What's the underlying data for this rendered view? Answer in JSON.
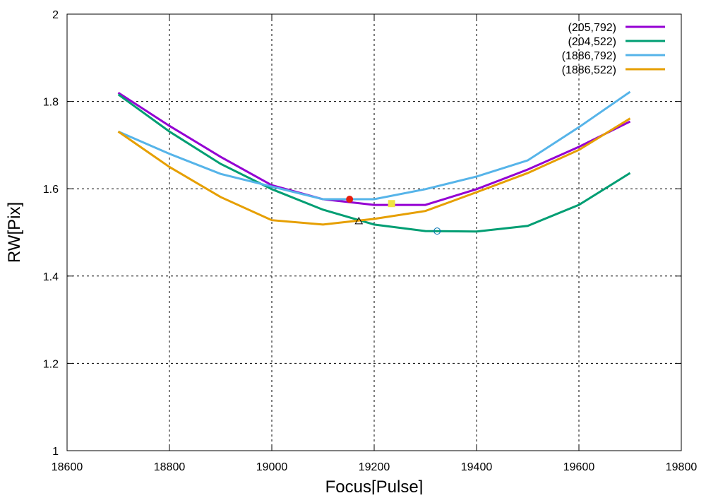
{
  "chart_data": {
    "type": "line",
    "title": "",
    "xlabel": "Focus[Pulse]",
    "ylabel": "RW[Pix]",
    "xlim": [
      18600,
      19800
    ],
    "ylim": [
      1,
      2
    ],
    "xticks": [
      18600,
      18800,
      19000,
      19200,
      19400,
      19600,
      19800
    ],
    "yticks": [
      1,
      1.2,
      1.4,
      1.6,
      1.8,
      2
    ],
    "ytick_labels": [
      "1",
      "1.2",
      "1.4",
      "1.6",
      "1.8",
      "2"
    ],
    "grid": true,
    "legend_position": "top-right",
    "x": [
      18700,
      18800,
      18900,
      19000,
      19100,
      19200,
      19300,
      19400,
      19500,
      19600,
      19700
    ],
    "series": [
      {
        "name": "(205,792)",
        "color": "#9400d3",
        "values": [
          1.82,
          1.744,
          1.673,
          1.608,
          1.576,
          1.563,
          1.563,
          1.599,
          1.644,
          1.696,
          1.754
        ]
      },
      {
        "name": "(204,522)",
        "color": "#009e73",
        "values": [
          1.816,
          1.731,
          1.657,
          1.599,
          1.552,
          1.518,
          1.503,
          1.502,
          1.515,
          1.563,
          1.636
        ]
      },
      {
        "name": "(1886,792)",
        "color": "#56b4e9",
        "values": [
          1.731,
          1.68,
          1.634,
          1.605,
          1.576,
          1.576,
          1.599,
          1.628,
          1.665,
          1.741,
          1.822
        ]
      },
      {
        "name": "(1886,522)",
        "color": "#e69f00",
        "values": [
          1.731,
          1.65,
          1.581,
          1.528,
          1.518,
          1.531,
          1.549,
          1.592,
          1.636,
          1.689,
          1.761
        ]
      }
    ],
    "markers": [
      {
        "shape": "filled-circle",
        "color": "#e51e10",
        "x": 19152,
        "y": 1.576
      },
      {
        "shape": "filled-square",
        "color": "#f0e442",
        "x": 19234,
        "y": 1.566
      },
      {
        "shape": "open-triangle",
        "color": "#000000",
        "x": 19170,
        "y": 1.526
      },
      {
        "shape": "open-circle",
        "color": "#0072b2",
        "x": 19323,
        "y": 1.503
      }
    ]
  }
}
